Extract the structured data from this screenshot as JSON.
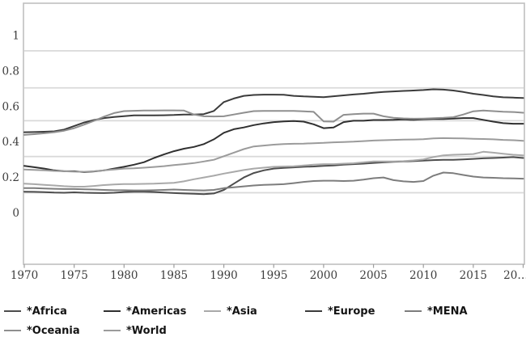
{
  "chart_data": {
    "type": "line",
    "title": "",
    "xlabel": "",
    "ylabel": "",
    "x_range": [
      1970,
      2020
    ],
    "ylim": [
      0,
      1
    ],
    "grid": "horizontal",
    "legend_position": "bottom",
    "x": [
      1970,
      1971,
      1972,
      1973,
      1974,
      1975,
      1976,
      1977,
      1978,
      1979,
      1980,
      1981,
      1982,
      1983,
      1984,
      1985,
      1986,
      1987,
      1988,
      1989,
      1990,
      1991,
      1992,
      1993,
      1994,
      1995,
      1996,
      1997,
      1998,
      1999,
      2000,
      2001,
      2002,
      2003,
      2004,
      2005,
      2006,
      2007,
      2008,
      2009,
      2010,
      2011,
      2012,
      2013,
      2014,
      2015,
      2016,
      2017,
      2018,
      2019,
      2020
    ],
    "series": [
      {
        "name": "*Africa",
        "color": "#4d4d4d",
        "values": [
          0.12,
          0.119,
          0.117,
          0.115,
          0.114,
          0.116,
          0.114,
          0.113,
          0.112,
          0.114,
          0.118,
          0.12,
          0.12,
          0.118,
          0.115,
          0.112,
          0.11,
          0.108,
          0.106,
          0.11,
          0.13,
          0.165,
          0.2,
          0.225,
          0.24,
          0.25,
          0.254,
          0.257,
          0.26,
          0.262,
          0.265,
          0.268,
          0.272,
          0.275,
          0.278,
          0.282,
          0.285,
          0.288,
          0.29,
          0.292,
          0.295,
          0.298,
          0.3,
          0.3,
          0.302,
          0.305,
          0.308,
          0.31,
          0.312,
          0.315,
          0.31
        ]
      },
      {
        "name": "*Americas",
        "color": "#303030",
        "values": [
          0.265,
          0.258,
          0.25,
          0.24,
          0.235,
          0.235,
          0.23,
          0.234,
          0.24,
          0.25,
          0.26,
          0.272,
          0.286,
          0.31,
          0.33,
          0.348,
          0.362,
          0.372,
          0.388,
          0.415,
          0.452,
          0.472,
          0.482,
          0.495,
          0.505,
          0.512,
          0.516,
          0.518,
          0.515,
          0.5,
          0.478,
          0.482,
          0.512,
          0.52,
          0.52,
          0.524,
          0.524,
          0.525,
          0.527,
          0.525,
          0.528,
          0.53,
          0.53,
          0.532,
          0.535,
          0.535,
          0.525,
          0.515,
          0.506,
          0.503,
          0.503
        ]
      },
      {
        "name": "*Asia",
        "color": "#a9a9a9",
        "values": [
          0.165,
          0.162,
          0.158,
          0.155,
          0.151,
          0.148,
          0.148,
          0.152,
          0.157,
          0.161,
          0.163,
          0.163,
          0.164,
          0.165,
          0.167,
          0.17,
          0.178,
          0.19,
          0.2,
          0.21,
          0.222,
          0.232,
          0.242,
          0.25,
          0.255,
          0.26,
          0.262,
          0.263,
          0.268,
          0.272,
          0.275,
          0.275,
          0.278,
          0.28,
          0.285,
          0.29,
          0.29,
          0.29,
          0.292,
          0.296,
          0.302,
          0.315,
          0.325,
          0.328,
          0.33,
          0.332,
          0.345,
          0.34,
          0.334,
          0.328,
          0.325
        ]
      },
      {
        "name": "*Europe",
        "color": "#3b3b3b",
        "values": [
          0.455,
          0.456,
          0.458,
          0.46,
          0.47,
          0.49,
          0.51,
          0.524,
          0.535,
          0.541,
          0.546,
          0.55,
          0.55,
          0.55,
          0.551,
          0.552,
          0.555,
          0.555,
          0.557,
          0.575,
          0.625,
          0.645,
          0.66,
          0.665,
          0.667,
          0.667,
          0.666,
          0.66,
          0.657,
          0.655,
          0.653,
          0.658,
          0.663,
          0.668,
          0.672,
          0.678,
          0.682,
          0.685,
          0.688,
          0.69,
          0.693,
          0.697,
          0.695,
          0.69,
          0.682,
          0.672,
          0.665,
          0.657,
          0.652,
          0.65,
          0.648
        ]
      },
      {
        "name": "*MENA",
        "color": "#7d7d7d",
        "values": [
          0.14,
          0.14,
          0.138,
          0.136,
          0.135,
          0.135,
          0.133,
          0.132,
          0.13,
          0.128,
          0.128,
          0.127,
          0.127,
          0.128,
          0.13,
          0.132,
          0.13,
          0.128,
          0.127,
          0.13,
          0.14,
          0.145,
          0.15,
          0.155,
          0.158,
          0.16,
          0.162,
          0.168,
          0.175,
          0.18,
          0.182,
          0.182,
          0.18,
          0.182,
          0.188,
          0.196,
          0.2,
          0.185,
          0.178,
          0.175,
          0.18,
          0.21,
          0.228,
          0.224,
          0.214,
          0.205,
          0.2,
          0.198,
          0.196,
          0.195,
          0.193
        ]
      },
      {
        "name": "*Oceania",
        "color": "#8f8f8f",
        "values": [
          0.44,
          0.444,
          0.449,
          0.455,
          0.464,
          0.478,
          0.498,
          0.52,
          0.543,
          0.563,
          0.574,
          0.576,
          0.577,
          0.577,
          0.578,
          0.578,
          0.577,
          0.555,
          0.545,
          0.544,
          0.545,
          0.555,
          0.565,
          0.574,
          0.575,
          0.575,
          0.575,
          0.575,
          0.573,
          0.57,
          0.516,
          0.515,
          0.553,
          0.557,
          0.56,
          0.56,
          0.545,
          0.536,
          0.533,
          0.531,
          0.532,
          0.534,
          0.536,
          0.54,
          0.555,
          0.573,
          0.577,
          0.574,
          0.571,
          0.569,
          0.565
        ]
      },
      {
        "name": "*World",
        "color": "#9b9b9b",
        "values": [
          0.245,
          0.243,
          0.24,
          0.237,
          0.235,
          0.233,
          0.232,
          0.235,
          0.24,
          0.245,
          0.25,
          0.252,
          0.255,
          0.259,
          0.264,
          0.27,
          0.275,
          0.281,
          0.29,
          0.3,
          0.32,
          0.34,
          0.36,
          0.375,
          0.38,
          0.385,
          0.388,
          0.39,
          0.391,
          0.393,
          0.395,
          0.398,
          0.4,
          0.402,
          0.405,
          0.408,
          0.41,
          0.412,
          0.413,
          0.414,
          0.416,
          0.42,
          0.422,
          0.421,
          0.42,
          0.418,
          0.417,
          0.415,
          0.412,
          0.41,
          0.407
        ]
      }
    ],
    "x_ticks": [
      {
        "label": "1970",
        "year": 1970
      },
      {
        "label": "1975",
        "year": 1975
      },
      {
        "label": "1980",
        "year": 1980
      },
      {
        "label": "1985",
        "year": 1985
      },
      {
        "label": "1990",
        "year": 1990
      },
      {
        "label": "1995",
        "year": 1995
      },
      {
        "label": "2000",
        "year": 2000
      },
      {
        "label": "2005",
        "year": 2005
      },
      {
        "label": "2010",
        "year": 2010
      },
      {
        "label": "2015",
        "year": 2015
      },
      {
        "label": "20…",
        "year": 2020
      }
    ],
    "y_ticks": [
      {
        "label": "1",
        "value": 1.0
      },
      {
        "label": "0.8",
        "value": 0.8
      },
      {
        "label": "0.6",
        "value": 0.6
      },
      {
        "label": "0.4",
        "value": 0.4
      },
      {
        "label": "0.2",
        "value": 0.2
      },
      {
        "label": "0",
        "value": 0.0
      }
    ],
    "gridline_values": [
      0.914,
      0.705,
      0.52,
      0.318,
      0.114
    ]
  },
  "colors": {
    "background": "#ffffff",
    "frame": "#bfbfbf",
    "grid": "#d9d9d9",
    "tick": "#9e9e9e",
    "tick_label": "#3d3d3d",
    "legend_text": "#141414"
  },
  "legend": {
    "row1": [
      "*Africa",
      "*Americas",
      "*Asia",
      "*Europe",
      "*MENA"
    ],
    "row2": [
      "*Oceania",
      "*World"
    ]
  }
}
